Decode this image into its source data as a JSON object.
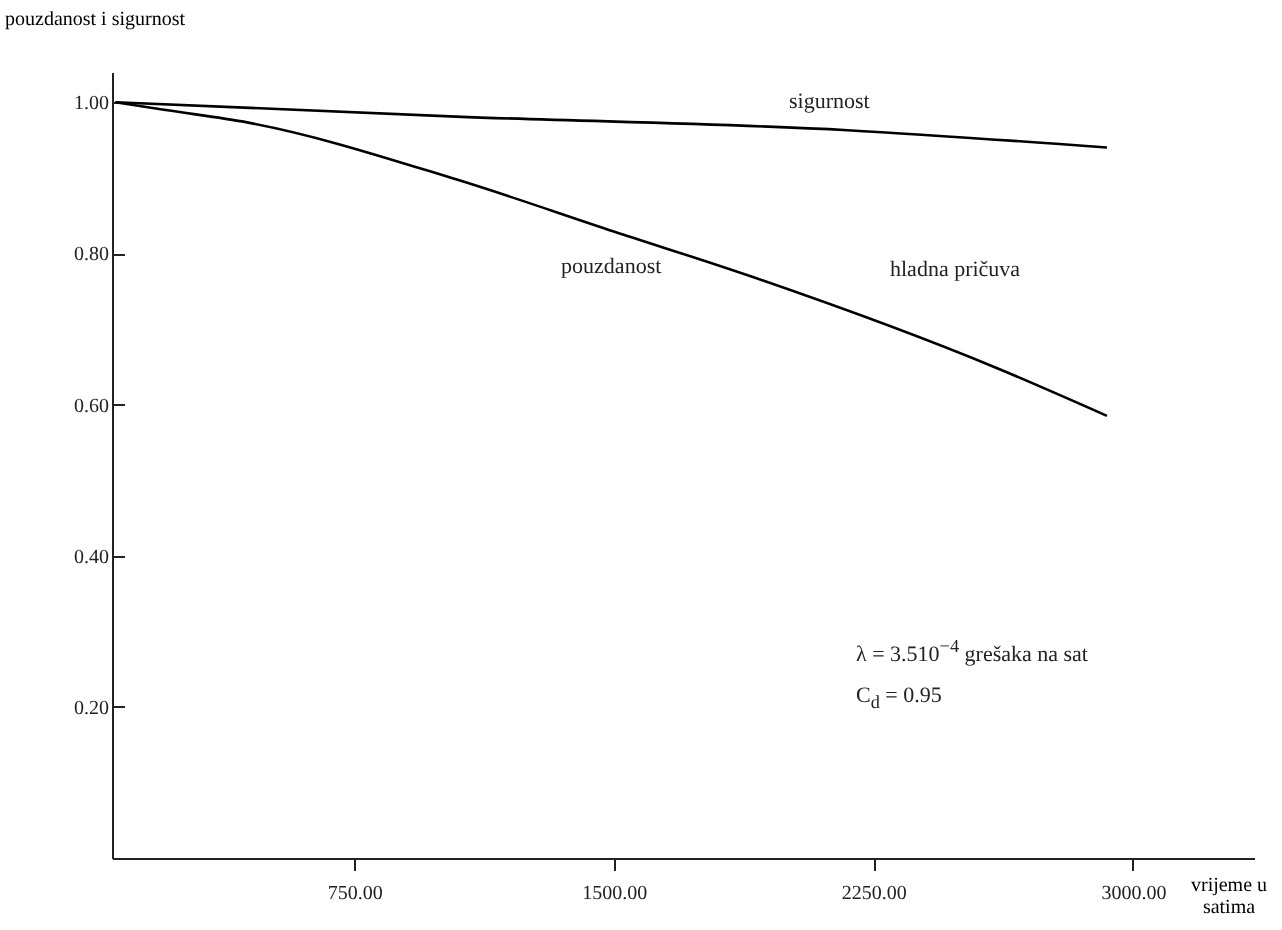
{
  "chart_data": {
    "type": "line",
    "xlabel": "vrijeme u satima",
    "ylabel": "pouzdanost i sigurnost",
    "xlim": [
      50,
      3350
    ],
    "ylim": [
      0,
      1.04
    ],
    "xticks": [
      {
        "value": 750,
        "label": "750.00"
      },
      {
        "value": 1500,
        "label": "1500.00"
      },
      {
        "value": 2250,
        "label": "2250.00"
      },
      {
        "value": 3000,
        "label": "3000.00"
      }
    ],
    "yticks": [
      {
        "value": 0.2,
        "label": "0.20"
      },
      {
        "value": 0.4,
        "label": "0.40"
      },
      {
        "value": 0.6,
        "label": "0.60"
      },
      {
        "value": 0.8,
        "label": "0.80"
      },
      {
        "value": 1.0,
        "label": "1.00"
      }
    ],
    "series": [
      {
        "name": "sigurnost",
        "color": "#000000",
        "x": [
          60,
          1044,
          2175,
          2925
        ],
        "values": [
          1.0,
          0.981,
          0.963,
          0.94
        ]
      },
      {
        "name": "pouzdanost",
        "color": "#000000",
        "x": [
          60,
          200,
          444,
          1044,
          1500,
          1887,
          2608,
          2925
        ],
        "values": [
          1.0,
          0.99,
          0.973,
          0.898,
          0.829,
          0.771,
          0.648,
          0.585
        ]
      }
    ],
    "annotations": [
      "hladna pričuva",
      "λ = 3.510$^{−4}$  grešaka na sat",
      "C$_{d}$ = 0.95"
    ],
    "grid": false,
    "legend": false,
    "marker": "none",
    "line_style": "solid"
  }
}
